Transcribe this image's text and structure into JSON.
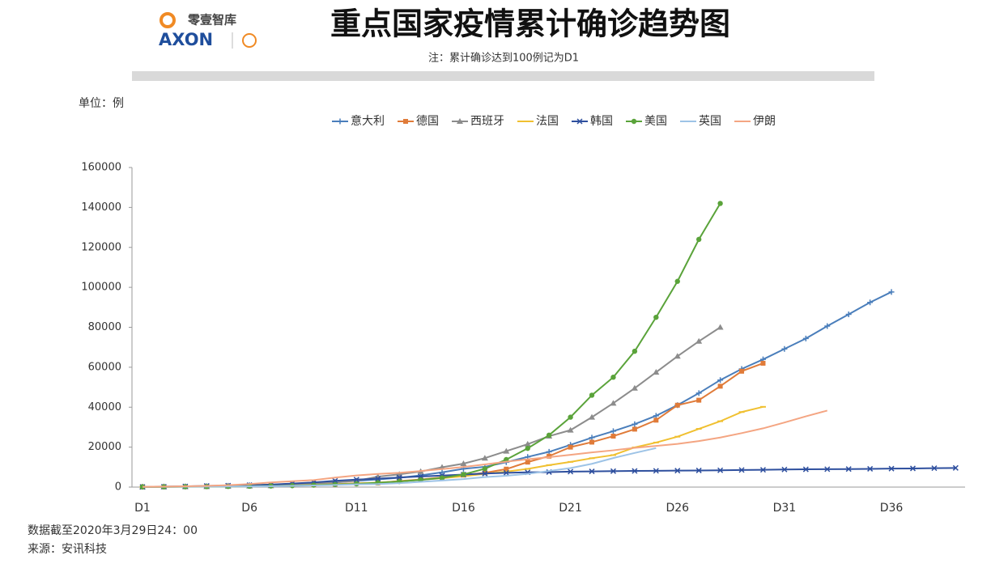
{
  "logo": {
    "name": "零壹智库",
    "brand": "AXON"
  },
  "chart_data": {
    "type": "line",
    "title": "重点国家疫情累计确诊趋势图",
    "subtitle": "注：累计确诊达到100例记为D1",
    "y_label": "单位：例",
    "footnotes": [
      "数据截至2020年3月29日24：00",
      "来源：安讯科技"
    ],
    "categories": [
      "D1",
      null,
      null,
      null,
      null,
      "D6",
      null,
      null,
      null,
      null,
      "D11",
      null,
      null,
      null,
      null,
      "D16",
      null,
      null,
      null,
      null,
      "D21",
      null,
      null,
      null,
      null,
      "D26",
      null,
      null,
      null,
      null,
      "D31",
      null,
      null,
      null,
      null,
      "D36",
      null,
      null,
      null
    ],
    "ylim": [
      0,
      160000
    ],
    "yticks": [
      0,
      20000,
      40000,
      60000,
      80000,
      100000,
      120000,
      140000,
      160000
    ],
    "grid": false,
    "legend": "top",
    "series": [
      {
        "name": "意大利",
        "color": "#4a7ebb",
        "marker": "plus",
        "values": [
          155,
          229,
          322,
          453,
          655,
          888,
          1128,
          1694,
          2036,
          2502,
          3089,
          3858,
          4636,
          5883,
          7375,
          9172,
          10149,
          12462,
          15113,
          17660,
          21157,
          24747,
          27980,
          31506,
          35713,
          41035,
          47021,
          53578,
          59138,
          63927,
          69176,
          74386,
          80589,
          86498,
          92472,
          97689,
          null,
          null,
          null
        ]
      },
      {
        "name": "德国",
        "color": "#e07b39",
        "marker": "square",
        "values": [
          130,
          159,
          196,
          262,
          482,
          670,
          799,
          1040,
          1176,
          1457,
          1908,
          2078,
          3062,
          3795,
          4838,
          6012,
          7156,
          9000,
          12500,
          15500,
          20000,
          22500,
          25500,
          29000,
          33500,
          41000,
          43500,
          50500,
          58000,
          62000,
          null,
          null,
          null,
          null,
          null,
          null,
          null,
          null,
          null
        ]
      },
      {
        "name": "西班牙",
        "color": "#8c8c8c",
        "marker": "triangle",
        "values": [
          120,
          165,
          222,
          259,
          400,
          500,
          673,
          1073,
          1695,
          2277,
          3146,
          5232,
          6391,
          7798,
          9942,
          11748,
          14500,
          18000,
          21500,
          25500,
          28500,
          35000,
          42000,
          49500,
          57500,
          65500,
          73000,
          80000,
          null,
          null,
          null,
          null,
          null,
          null,
          null,
          null,
          null,
          null,
          null
        ]
      },
      {
        "name": "法国",
        "color": "#f0c030",
        "marker": "dash",
        "values": [
          100,
          130,
          191,
          212,
          285,
          423,
          613,
          706,
          1116,
          1402,
          1774,
          2269,
          2860,
          3640,
          4469,
          5423,
          6633,
          7730,
          9134,
          10995,
          12612,
          14459,
          16018,
          19856,
          22302,
          25233,
          29155,
          32964,
          37575,
          40174,
          null,
          null,
          null,
          null,
          null,
          null,
          null,
          null,
          null
        ]
      },
      {
        "name": "韩国",
        "color": "#2e4f9e",
        "marker": "cross",
        "values": [
          104,
          204,
          346,
          602,
          763,
          977,
          1261,
          1766,
          2337,
          3150,
          3736,
          4212,
          4812,
          5328,
          5766,
          6284,
          6767,
          7134,
          7382,
          7513,
          7755,
          7869,
          7979,
          8086,
          8162,
          8236,
          8320,
          8413,
          8565,
          8652,
          8799,
          8897,
          8961,
          9037,
          9137,
          9241,
          9332,
          9478,
          9583
        ]
      },
      {
        "name": "美国",
        "color": "#5aa33a",
        "marker": "circle",
        "values": [
          100,
          124,
          158,
          221,
          319,
          435,
          541,
          704,
          994,
          1301,
          1630,
          2183,
          2770,
          3613,
          4596,
          6344,
          9197,
          13779,
          19383,
          26000,
          35000,
          46000,
          55000,
          68000,
          85000,
          103000,
          124000,
          142000,
          null,
          null,
          null,
          null,
          null,
          null,
          null,
          null,
          null,
          null,
          null
        ]
      },
      {
        "name": "英国",
        "color": "#9dc3e6",
        "marker": "none",
        "values": [
          115,
          163,
          206,
          273,
          321,
          373,
          456,
          590,
          797,
          1061,
          1391,
          1543,
          1950,
          2626,
          3269,
          3983,
          5018,
          5683,
          6650,
          8077,
          9529,
          11658,
          14543,
          17089,
          19522,
          null,
          null,
          null,
          null,
          null,
          null,
          null,
          null,
          null,
          null,
          null,
          null,
          null,
          null
        ]
      },
      {
        "name": "伊朗",
        "color": "#f4a582",
        "marker": "none",
        "values": [
          141,
          245,
          388,
          593,
          978,
          1501,
          2336,
          2922,
          3513,
          4747,
          5823,
          6566,
          7161,
          8042,
          9000,
          10075,
          11364,
          12729,
          13938,
          14991,
          16169,
          17361,
          18407,
          19644,
          20610,
          21638,
          23049,
          24811,
          27017,
          29406,
          32332,
          35408,
          38309,
          null,
          null,
          null,
          null,
          null,
          null
        ]
      }
    ]
  }
}
